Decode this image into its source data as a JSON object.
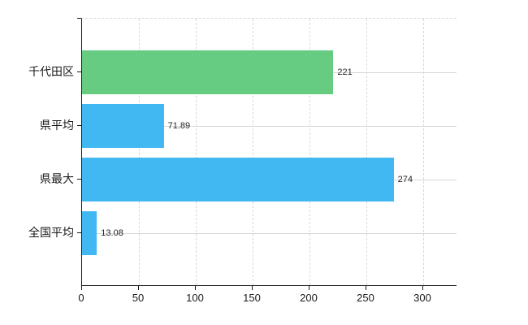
{
  "chart_data": {
    "type": "bar",
    "orientation": "horizontal",
    "title": "",
    "xlabel": "",
    "ylabel": "",
    "categories": [
      "千代田区",
      "県平均",
      "県最大",
      "全国平均"
    ],
    "values": [
      221,
      71.89,
      274,
      13.08
    ],
    "value_labels": [
      "221",
      "71.89",
      "274",
      "13.08"
    ],
    "bar_colors": [
      "#66cc82",
      "#41b8f2",
      "#41b8f2",
      "#41b8f2"
    ],
    "x_ticks": [
      0,
      50,
      100,
      150,
      200,
      250,
      300
    ],
    "x_tick_labels": [
      "0",
      "50",
      "100",
      "150",
      "200",
      "250",
      "300"
    ],
    "xlim": [
      0,
      330
    ],
    "grid": "vertical dashed lines at x ticks, horizontal light lines at category centers, dashed top border",
    "legend": "none"
  },
  "colors": {
    "axis": "#1a1a1a",
    "grid_dashed": "#d9d9d9",
    "grid_row": "#d6d6d6",
    "text": "#262626",
    "background": "#ffffff"
  }
}
